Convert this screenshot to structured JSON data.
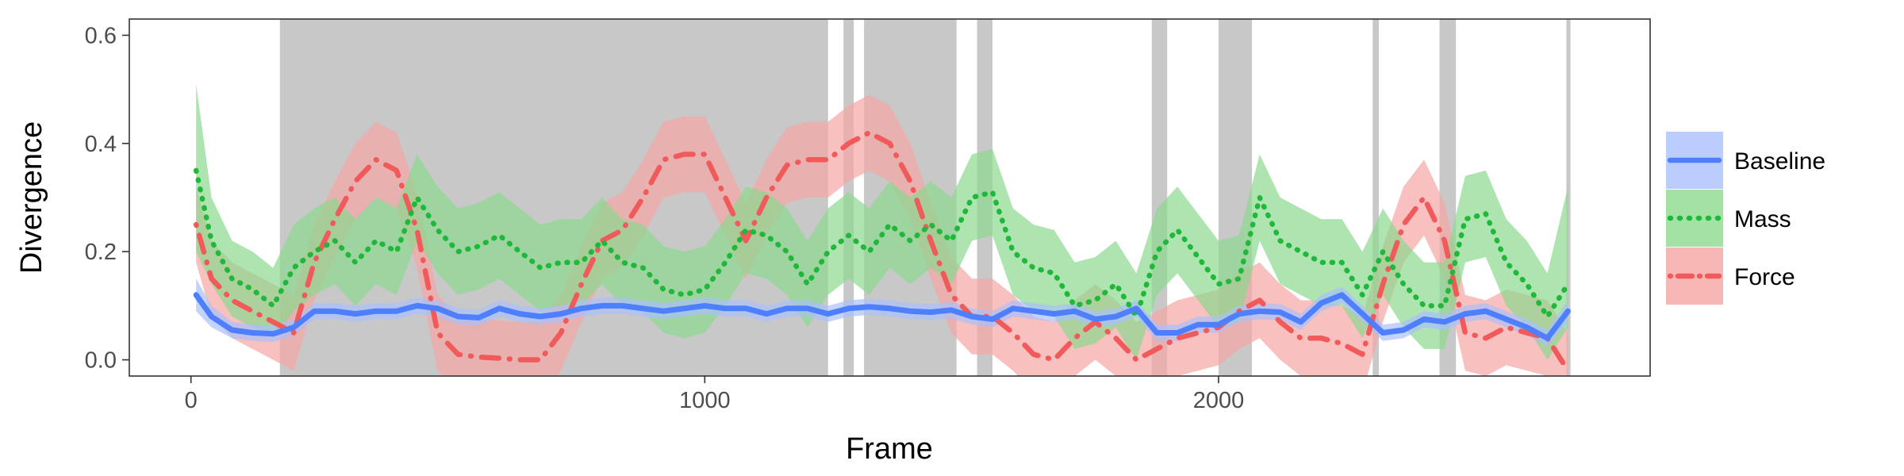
{
  "chart_data": {
    "type": "line",
    "title": "",
    "xlabel": "Frame",
    "ylabel": "Divergence",
    "xlim": [
      -120,
      2840
    ],
    "ylim": [
      -0.03,
      0.63
    ],
    "xticks": [
      {
        "value": 0,
        "label": "0"
      },
      {
        "value": 1000,
        "label": "1000"
      },
      {
        "value": 2000,
        "label": "2000"
      }
    ],
    "yticks": [
      {
        "value": 0.0,
        "label": "0.0"
      },
      {
        "value": 0.2,
        "label": "0.2"
      },
      {
        "value": 0.4,
        "label": "0.4"
      },
      {
        "value": 0.6,
        "label": "0.6"
      }
    ],
    "grid": false,
    "legend_position": "right",
    "shaded_regions": [
      [
        173,
        1240
      ],
      [
        1270,
        1290
      ],
      [
        1310,
        1490
      ],
      [
        1530,
        1560
      ],
      [
        1870,
        1900
      ],
      [
        2000,
        2065
      ],
      [
        2300,
        2312
      ],
      [
        2430,
        2462
      ],
      [
        2677,
        2685
      ]
    ],
    "series": [
      {
        "name": "Baseline",
        "color": "#4d7fff",
        "band_color": "#a9c1fb",
        "dash": "solid",
        "x": [
          10,
          40,
          80,
          120,
          160,
          200,
          240,
          280,
          320,
          360,
          400,
          440,
          480,
          520,
          560,
          600,
          640,
          680,
          720,
          760,
          800,
          840,
          880,
          920,
          960,
          1000,
          1040,
          1080,
          1120,
          1160,
          1200,
          1240,
          1280,
          1320,
          1360,
          1400,
          1440,
          1480,
          1520,
          1560,
          1600,
          1640,
          1680,
          1720,
          1760,
          1800,
          1840,
          1880,
          1920,
          1960,
          2000,
          2040,
          2080,
          2120,
          2160,
          2200,
          2240,
          2280,
          2320,
          2360,
          2400,
          2440,
          2480,
          2520,
          2560,
          2600,
          2640,
          2680
        ],
        "y": [
          0.12,
          0.08,
          0.055,
          0.05,
          0.048,
          0.06,
          0.09,
          0.09,
          0.085,
          0.09,
          0.09,
          0.1,
          0.095,
          0.08,
          0.078,
          0.095,
          0.085,
          0.08,
          0.085,
          0.095,
          0.1,
          0.1,
          0.095,
          0.09,
          0.095,
          0.1,
          0.095,
          0.095,
          0.085,
          0.095,
          0.095,
          0.085,
          0.095,
          0.098,
          0.095,
          0.09,
          0.088,
          0.092,
          0.08,
          0.075,
          0.095,
          0.09,
          0.085,
          0.09,
          0.075,
          0.08,
          0.095,
          0.05,
          0.05,
          0.065,
          0.065,
          0.085,
          0.09,
          0.088,
          0.07,
          0.105,
          0.12,
          0.085,
          0.05,
          0.055,
          0.075,
          0.07,
          0.085,
          0.09,
          0.075,
          0.06,
          0.04,
          0.09
        ],
        "lower": [
          0.09,
          0.06,
          0.04,
          0.035,
          0.033,
          0.045,
          0.075,
          0.075,
          0.07,
          0.075,
          0.075,
          0.085,
          0.08,
          0.065,
          0.063,
          0.08,
          0.07,
          0.065,
          0.07,
          0.08,
          0.085,
          0.085,
          0.08,
          0.075,
          0.08,
          0.085,
          0.08,
          0.08,
          0.07,
          0.08,
          0.08,
          0.07,
          0.08,
          0.083,
          0.08,
          0.075,
          0.073,
          0.077,
          0.065,
          0.06,
          0.08,
          0.075,
          0.07,
          0.075,
          0.06,
          0.065,
          0.08,
          0.035,
          0.035,
          0.05,
          0.05,
          0.07,
          0.075,
          0.073,
          0.055,
          0.09,
          0.105,
          0.07,
          0.035,
          0.04,
          0.06,
          0.055,
          0.07,
          0.075,
          0.06,
          0.045,
          0.025,
          0.07
        ],
        "upper": [
          0.15,
          0.1,
          0.07,
          0.065,
          0.063,
          0.075,
          0.105,
          0.105,
          0.1,
          0.105,
          0.105,
          0.115,
          0.11,
          0.095,
          0.093,
          0.11,
          0.1,
          0.095,
          0.1,
          0.11,
          0.115,
          0.115,
          0.11,
          0.105,
          0.11,
          0.115,
          0.11,
          0.11,
          0.1,
          0.11,
          0.11,
          0.1,
          0.11,
          0.113,
          0.11,
          0.105,
          0.103,
          0.107,
          0.095,
          0.09,
          0.11,
          0.105,
          0.1,
          0.105,
          0.09,
          0.095,
          0.11,
          0.065,
          0.065,
          0.08,
          0.08,
          0.1,
          0.105,
          0.103,
          0.085,
          0.12,
          0.135,
          0.1,
          0.065,
          0.07,
          0.09,
          0.085,
          0.1,
          0.105,
          0.09,
          0.075,
          0.055,
          0.11
        ]
      },
      {
        "name": "Mass",
        "color": "#1fb83a",
        "band_color": "#8cd98e",
        "dash": "dotted",
        "x": [
          10,
          40,
          80,
          120,
          160,
          200,
          240,
          280,
          320,
          360,
          400,
          440,
          480,
          520,
          560,
          600,
          640,
          680,
          720,
          760,
          800,
          840,
          880,
          920,
          960,
          1000,
          1040,
          1080,
          1120,
          1160,
          1200,
          1240,
          1280,
          1320,
          1360,
          1400,
          1440,
          1480,
          1520,
          1560,
          1600,
          1640,
          1680,
          1720,
          1760,
          1800,
          1840,
          1880,
          1920,
          1960,
          2000,
          2040,
          2080,
          2120,
          2160,
          2200,
          2240,
          2280,
          2320,
          2360,
          2400,
          2440,
          2480,
          2520,
          2560,
          2600,
          2640,
          2680
        ],
        "y": [
          0.35,
          0.22,
          0.15,
          0.13,
          0.1,
          0.17,
          0.2,
          0.22,
          0.18,
          0.22,
          0.2,
          0.3,
          0.24,
          0.2,
          0.21,
          0.23,
          0.2,
          0.17,
          0.18,
          0.18,
          0.22,
          0.18,
          0.17,
          0.13,
          0.12,
          0.13,
          0.18,
          0.24,
          0.23,
          0.2,
          0.14,
          0.2,
          0.23,
          0.2,
          0.25,
          0.22,
          0.25,
          0.22,
          0.3,
          0.31,
          0.2,
          0.17,
          0.16,
          0.1,
          0.11,
          0.14,
          0.08,
          0.2,
          0.24,
          0.19,
          0.14,
          0.15,
          0.3,
          0.22,
          0.2,
          0.18,
          0.18,
          0.12,
          0.2,
          0.14,
          0.1,
          0.1,
          0.26,
          0.27,
          0.18,
          0.14,
          0.08,
          0.14
        ],
        "lower": [
          0.2,
          0.14,
          0.08,
          0.06,
          0.04,
          0.09,
          0.12,
          0.14,
          0.1,
          0.14,
          0.12,
          0.22,
          0.16,
          0.12,
          0.13,
          0.15,
          0.12,
          0.09,
          0.1,
          0.1,
          0.14,
          0.1,
          0.09,
          0.05,
          0.04,
          0.05,
          0.1,
          0.16,
          0.15,
          0.12,
          0.06,
          0.12,
          0.15,
          0.12,
          0.17,
          0.14,
          0.17,
          0.14,
          0.22,
          0.23,
          0.12,
          0.09,
          0.08,
          0.02,
          0.03,
          0.06,
          0.0,
          0.12,
          0.16,
          0.11,
          0.06,
          0.07,
          0.22,
          0.14,
          0.12,
          0.1,
          0.1,
          0.04,
          0.12,
          0.06,
          0.02,
          0.02,
          0.18,
          0.19,
          0.1,
          0.06,
          0.0,
          0.06
        ],
        "upper": [
          0.51,
          0.3,
          0.22,
          0.2,
          0.17,
          0.25,
          0.28,
          0.3,
          0.26,
          0.3,
          0.28,
          0.38,
          0.32,
          0.28,
          0.29,
          0.31,
          0.28,
          0.25,
          0.26,
          0.26,
          0.3,
          0.26,
          0.25,
          0.21,
          0.2,
          0.21,
          0.26,
          0.32,
          0.31,
          0.28,
          0.22,
          0.28,
          0.31,
          0.28,
          0.33,
          0.3,
          0.33,
          0.3,
          0.38,
          0.39,
          0.28,
          0.25,
          0.24,
          0.18,
          0.19,
          0.22,
          0.16,
          0.28,
          0.32,
          0.27,
          0.22,
          0.23,
          0.38,
          0.3,
          0.28,
          0.26,
          0.26,
          0.2,
          0.28,
          0.22,
          0.18,
          0.18,
          0.34,
          0.35,
          0.26,
          0.22,
          0.16,
          0.32
        ]
      },
      {
        "name": "Force",
        "color": "#f05a5a",
        "band_color": "#f5a5a3",
        "dash": "dotdash",
        "x": [
          10,
          40,
          80,
          120,
          160,
          200,
          240,
          280,
          320,
          360,
          400,
          440,
          480,
          520,
          560,
          600,
          640,
          680,
          720,
          760,
          800,
          840,
          880,
          920,
          960,
          1000,
          1040,
          1080,
          1120,
          1160,
          1200,
          1240,
          1280,
          1320,
          1360,
          1400,
          1440,
          1480,
          1520,
          1560,
          1600,
          1640,
          1680,
          1720,
          1760,
          1800,
          1840,
          1880,
          1920,
          1960,
          2000,
          2040,
          2080,
          2120,
          2160,
          2200,
          2240,
          2280,
          2320,
          2360,
          2400,
          2440,
          2480,
          2520,
          2560,
          2600,
          2640,
          2680
        ],
        "y": [
          0.25,
          0.15,
          0.11,
          0.09,
          0.07,
          0.05,
          0.18,
          0.26,
          0.33,
          0.37,
          0.35,
          0.24,
          0.05,
          0.01,
          0.005,
          0.003,
          0.0,
          0.0,
          0.05,
          0.14,
          0.22,
          0.24,
          0.3,
          0.37,
          0.38,
          0.38,
          0.3,
          0.22,
          0.3,
          0.36,
          0.37,
          0.37,
          0.4,
          0.42,
          0.4,
          0.33,
          0.22,
          0.12,
          0.08,
          0.08,
          0.05,
          0.01,
          0.0,
          0.04,
          0.07,
          0.04,
          0.0,
          0.02,
          0.04,
          0.05,
          0.06,
          0.09,
          0.11,
          0.07,
          0.04,
          0.04,
          0.03,
          0.01,
          0.14,
          0.25,
          0.3,
          0.22,
          0.05,
          0.04,
          0.06,
          0.05,
          0.04,
          -0.02
        ],
        "lower": [
          0.18,
          0.08,
          0.04,
          0.02,
          0.0,
          -0.02,
          0.11,
          0.19,
          0.26,
          0.3,
          0.28,
          0.17,
          -0.02,
          -0.06,
          -0.07,
          -0.07,
          -0.07,
          -0.07,
          -0.02,
          0.07,
          0.15,
          0.17,
          0.23,
          0.3,
          0.31,
          0.31,
          0.23,
          0.15,
          0.23,
          0.29,
          0.3,
          0.3,
          0.33,
          0.35,
          0.33,
          0.26,
          0.15,
          0.05,
          0.01,
          0.01,
          -0.02,
          -0.06,
          -0.07,
          -0.03,
          0.0,
          -0.03,
          -0.07,
          -0.05,
          -0.03,
          -0.02,
          -0.01,
          0.02,
          0.04,
          0.0,
          -0.03,
          -0.03,
          -0.04,
          -0.06,
          0.07,
          0.18,
          0.23,
          0.15,
          -0.02,
          -0.03,
          -0.01,
          -0.02,
          -0.03,
          -0.09
        ],
        "upper": [
          0.32,
          0.22,
          0.18,
          0.16,
          0.14,
          0.12,
          0.25,
          0.33,
          0.4,
          0.44,
          0.42,
          0.31,
          0.12,
          0.08,
          0.075,
          0.073,
          0.07,
          0.07,
          0.12,
          0.21,
          0.29,
          0.31,
          0.37,
          0.44,
          0.45,
          0.45,
          0.37,
          0.29,
          0.37,
          0.43,
          0.44,
          0.44,
          0.47,
          0.49,
          0.47,
          0.4,
          0.29,
          0.19,
          0.15,
          0.15,
          0.12,
          0.08,
          0.07,
          0.11,
          0.14,
          0.11,
          0.07,
          0.09,
          0.11,
          0.12,
          0.13,
          0.16,
          0.18,
          0.14,
          0.11,
          0.11,
          0.1,
          0.08,
          0.21,
          0.32,
          0.37,
          0.29,
          0.12,
          0.11,
          0.13,
          0.12,
          0.11,
          0.05
        ]
      }
    ]
  }
}
